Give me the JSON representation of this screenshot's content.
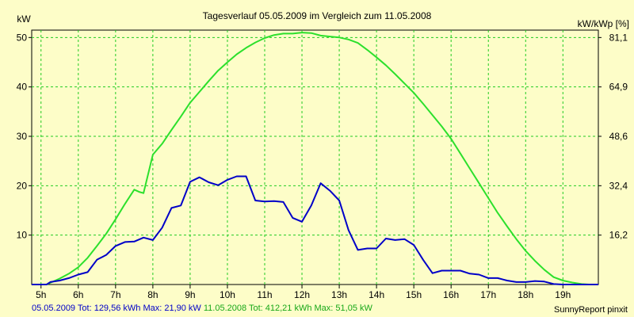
{
  "chart_data": {
    "type": "line",
    "title": "Tagesverlauf 05.05.2009 im Vergleich zum 11.05.2008",
    "ylabel_left": "kW",
    "ylabel_right": "kW/kWp [%]",
    "xlim": [
      4.75,
      19.95
    ],
    "ylim": [
      0,
      51.5
    ],
    "grid": true,
    "x_ticks": [
      5,
      6,
      7,
      8,
      9,
      10,
      11,
      12,
      13,
      14,
      15,
      16,
      17,
      18,
      19
    ],
    "x_tick_labels": [
      "5h",
      "6h",
      "7h",
      "8h",
      "9h",
      "10h",
      "11h",
      "12h",
      "13h",
      "14h",
      "15h",
      "16h",
      "17h",
      "18h",
      "19h"
    ],
    "y_left_ticks": [
      10,
      20,
      30,
      40,
      50
    ],
    "y_right_ticks": [
      {
        "at": 10,
        "label": "16,2"
      },
      {
        "at": 20,
        "label": "32,4"
      },
      {
        "at": 30,
        "label": "48,6"
      },
      {
        "at": 40,
        "label": "64,9"
      },
      {
        "at": 50,
        "label": "81,1"
      }
    ],
    "series": [
      {
        "name": "05.05.2009",
        "color": "#0000c8",
        "x": [
          4.75,
          5.15,
          5.25,
          5.5,
          5.75,
          6.0,
          6.25,
          6.5,
          6.75,
          7.0,
          7.25,
          7.5,
          7.75,
          8.0,
          8.25,
          8.5,
          8.75,
          9.0,
          9.25,
          9.5,
          9.75,
          10.0,
          10.25,
          10.5,
          10.75,
          11.0,
          11.25,
          11.5,
          11.75,
          12.0,
          12.25,
          12.5,
          12.75,
          13.0,
          13.25,
          13.5,
          13.75,
          14.0,
          14.25,
          14.5,
          14.75,
          15.0,
          15.25,
          15.5,
          15.75,
          16.0,
          16.25,
          16.5,
          16.75,
          17.0,
          17.25,
          17.5,
          17.75,
          18.0,
          18.25,
          18.5,
          18.75,
          19.0,
          19.95
        ],
        "values": [
          0,
          0,
          0.5,
          0.8,
          1.3,
          2.0,
          2.5,
          5.0,
          6.0,
          7.8,
          8.6,
          8.7,
          9.5,
          9.0,
          11.5,
          15.5,
          16.0,
          20.8,
          21.7,
          20.7,
          20.1,
          21.2,
          21.9,
          21.9,
          17.0,
          16.8,
          16.9,
          16.7,
          13.5,
          12.7,
          16.0,
          20.5,
          19.0,
          17.0,
          11.0,
          7.0,
          7.3,
          7.3,
          9.3,
          9.0,
          9.2,
          8.0,
          5.0,
          2.3,
          2.8,
          2.8,
          2.8,
          2.2,
          2.0,
          1.3,
          1.3,
          0.8,
          0.5,
          0.5,
          0.7,
          0.6,
          0.1,
          0,
          0
        ]
      },
      {
        "name": "11.05.2008",
        "color": "#2ce02c",
        "x": [
          4.75,
          5.15,
          5.5,
          5.75,
          6.0,
          6.25,
          6.5,
          6.75,
          7.0,
          7.25,
          7.5,
          7.65,
          7.75,
          8.0,
          8.25,
          8.5,
          8.75,
          9.0,
          9.25,
          9.5,
          9.75,
          10.0,
          10.25,
          10.5,
          10.75,
          11.0,
          11.25,
          11.5,
          11.75,
          12.0,
          12.25,
          12.5,
          12.75,
          13.0,
          13.25,
          13.5,
          13.75,
          14.0,
          14.25,
          14.5,
          14.75,
          15.0,
          15.25,
          15.5,
          15.75,
          16.0,
          16.25,
          16.5,
          16.75,
          17.0,
          17.25,
          17.5,
          17.75,
          18.0,
          18.25,
          18.5,
          18.75,
          19.0,
          19.25,
          19.5,
          19.7,
          19.95
        ],
        "values": [
          0,
          0,
          1.2,
          2.2,
          3.5,
          5.4,
          7.8,
          10.3,
          13.2,
          16.3,
          19.2,
          18.7,
          18.5,
          26.3,
          28.5,
          31.3,
          34.0,
          36.8,
          39.0,
          41.2,
          43.3,
          45.0,
          46.6,
          47.9,
          49.0,
          49.9,
          50.5,
          50.8,
          50.8,
          51.0,
          50.9,
          50.4,
          50.2,
          50.0,
          49.6,
          48.9,
          47.5,
          46.0,
          44.4,
          42.6,
          40.7,
          38.8,
          36.6,
          34.3,
          32.0,
          29.5,
          26.5,
          23.5,
          20.5,
          17.5,
          14.5,
          11.8,
          9.2,
          6.8,
          4.8,
          3.0,
          1.5,
          0.8,
          0.4,
          0.1,
          0,
          0
        ]
      }
    ]
  },
  "legend": {
    "s1": "05.05.2009 Tot: 129,56 kWh Max: 21,90 kW",
    "s2": "11.05.2008 Tot: 412,21 kWh Max: 51,05 kW"
  },
  "credit": "SunnyReport pinxit"
}
